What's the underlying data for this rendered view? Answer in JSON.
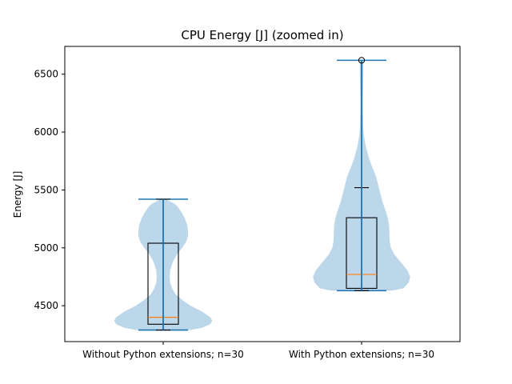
{
  "chart_data": {
    "type": "violin-box",
    "title": "CPU Energy [J] (zoomed in)",
    "xlabel": "",
    "ylabel": "Energy [J]",
    "ylim": [
      4190,
      6740
    ],
    "yticks": [
      4500,
      5000,
      5500,
      6000,
      6500
    ],
    "ytick_labels": [
      "4500",
      "5000",
      "5500",
      "6000",
      "6500"
    ],
    "grid": false,
    "categories": [
      "Without Python extensions; n=30",
      "With Python extensions; n=30"
    ],
    "violin_color": "#bcd6ea",
    "line_color": "#1f77b4",
    "median_color": "#ff7f0e",
    "groups": [
      {
        "label": "Without Python extensions; n=30",
        "min": 4290,
        "max": 5420,
        "q1": 4340,
        "median": 4400,
        "q3": 5040,
        "whisker_low": 4290,
        "whisker_high": 5420,
        "outliers": [],
        "density": [
          [
            4290,
            0.54
          ],
          [
            4310,
            0.79
          ],
          [
            4340,
            0.95
          ],
          [
            4370,
            0.99
          ],
          [
            4400,
            0.95
          ],
          [
            4450,
            0.78
          ],
          [
            4500,
            0.55
          ],
          [
            4550,
            0.38
          ],
          [
            4600,
            0.25
          ],
          [
            4650,
            0.18
          ],
          [
            4700,
            0.14
          ],
          [
            4750,
            0.13
          ],
          [
            4800,
            0.14
          ],
          [
            4850,
            0.17
          ],
          [
            4900,
            0.22
          ],
          [
            4950,
            0.29
          ],
          [
            5000,
            0.38
          ],
          [
            5050,
            0.46
          ],
          [
            5100,
            0.5
          ],
          [
            5150,
            0.5
          ],
          [
            5200,
            0.48
          ],
          [
            5250,
            0.44
          ],
          [
            5300,
            0.38
          ],
          [
            5350,
            0.3
          ],
          [
            5380,
            0.23
          ],
          [
            5400,
            0.14
          ],
          [
            5420,
            0.05
          ]
        ]
      },
      {
        "label": "With Python extensions; n=30",
        "min": 4630,
        "max": 6620,
        "q1": 4650,
        "median": 4770,
        "q3": 5260,
        "whisker_low": 4630,
        "whisker_high": 5520,
        "outliers": [
          6620
        ],
        "density": [
          [
            4630,
            0.62
          ],
          [
            4650,
            0.84
          ],
          [
            4700,
            0.95
          ],
          [
            4750,
            0.98
          ],
          [
            4800,
            0.93
          ],
          [
            4850,
            0.84
          ],
          [
            4900,
            0.74
          ],
          [
            4950,
            0.65
          ],
          [
            5000,
            0.59
          ],
          [
            5050,
            0.57
          ],
          [
            5100,
            0.56
          ],
          [
            5150,
            0.56
          ],
          [
            5200,
            0.55
          ],
          [
            5250,
            0.53
          ],
          [
            5300,
            0.5
          ],
          [
            5350,
            0.46
          ],
          [
            5400,
            0.42
          ],
          [
            5450,
            0.39
          ],
          [
            5500,
            0.36
          ],
          [
            5550,
            0.33
          ],
          [
            5600,
            0.3
          ],
          [
            5650,
            0.26
          ],
          [
            5700,
            0.21
          ],
          [
            5750,
            0.17
          ],
          [
            5800,
            0.13
          ],
          [
            5850,
            0.1
          ],
          [
            5900,
            0.075
          ],
          [
            5950,
            0.055
          ],
          [
            6000,
            0.04
          ],
          [
            6100,
            0.03
          ],
          [
            6200,
            0.025
          ],
          [
            6300,
            0.025
          ],
          [
            6400,
            0.03
          ],
          [
            6500,
            0.035
          ],
          [
            6580,
            0.035
          ],
          [
            6620,
            0.02
          ]
        ]
      }
    ]
  }
}
